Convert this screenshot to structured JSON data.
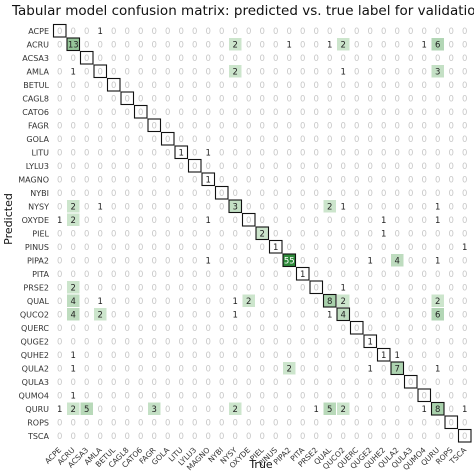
{
  "chart_data": {
    "type": "heatmap",
    "title": "Tabular model confusion matrix: predicted vs. true label for validation set",
    "xlabel": "True",
    "ylabel": "Predicted",
    "labels": [
      "ACPE",
      "ACRU",
      "ACSA3",
      "AMLA",
      "BETUL",
      "CAGL8",
      "CATO6",
      "FAGR",
      "GOLA",
      "LITU",
      "LYLU3",
      "MAGNO",
      "NYBI",
      "NYSY",
      "OXYDE",
      "PIEL",
      "PINUS",
      "PIPA2",
      "PITA",
      "PRSE2",
      "QUAL",
      "QUCO2",
      "QUERC",
      "QUGE2",
      "QUHE2",
      "QULA2",
      "QULA3",
      "QUMO4",
      "QURU",
      "ROPS",
      "TSCA"
    ],
    "matrix": [
      [
        0,
        0,
        0,
        1,
        0,
        0,
        0,
        0,
        0,
        0,
        0,
        0,
        0,
        0,
        0,
        0,
        0,
        0,
        0,
        0,
        0,
        0,
        0,
        0,
        0,
        0,
        0,
        0,
        0,
        0,
        0
      ],
      [
        0,
        13,
        0,
        0,
        0,
        0,
        0,
        0,
        0,
        0,
        0,
        0,
        0,
        2,
        0,
        0,
        0,
        1,
        0,
        0,
        1,
        2,
        0,
        0,
        0,
        0,
        0,
        1,
        6,
        0,
        0
      ],
      [
        0,
        0,
        0,
        0,
        0,
        0,
        0,
        0,
        0,
        0,
        0,
        0,
        0,
        0,
        0,
        0,
        0,
        0,
        0,
        0,
        0,
        0,
        0,
        0,
        0,
        0,
        0,
        0,
        0,
        0,
        0
      ],
      [
        0,
        1,
        0,
        0,
        0,
        0,
        0,
        0,
        0,
        0,
        0,
        0,
        0,
        2,
        0,
        0,
        0,
        0,
        0,
        0,
        0,
        1,
        0,
        0,
        0,
        0,
        0,
        0,
        3,
        0,
        0
      ],
      [
        0,
        0,
        0,
        0,
        0,
        0,
        0,
        0,
        0,
        0,
        0,
        0,
        0,
        0,
        0,
        0,
        0,
        0,
        0,
        0,
        0,
        0,
        0,
        0,
        0,
        0,
        0,
        0,
        0,
        0,
        0
      ],
      [
        0,
        0,
        0,
        0,
        0,
        0,
        0,
        0,
        0,
        0,
        0,
        0,
        0,
        0,
        0,
        0,
        0,
        0,
        0,
        0,
        0,
        0,
        0,
        0,
        0,
        0,
        0,
        0,
        0,
        0,
        0
      ],
      [
        0,
        0,
        0,
        0,
        0,
        0,
        0,
        0,
        0,
        0,
        0,
        0,
        0,
        0,
        0,
        0,
        0,
        0,
        0,
        0,
        0,
        0,
        0,
        0,
        0,
        0,
        0,
        0,
        0,
        0,
        0
      ],
      [
        0,
        0,
        0,
        0,
        0,
        0,
        0,
        0,
        0,
        0,
        0,
        0,
        0,
        0,
        0,
        0,
        0,
        0,
        0,
        0,
        0,
        0,
        0,
        0,
        0,
        0,
        0,
        0,
        0,
        0,
        0
      ],
      [
        0,
        0,
        0,
        0,
        0,
        0,
        0,
        0,
        0,
        0,
        0,
        0,
        0,
        0,
        0,
        0,
        0,
        0,
        0,
        0,
        0,
        0,
        0,
        0,
        0,
        0,
        0,
        0,
        0,
        0,
        0
      ],
      [
        0,
        0,
        0,
        0,
        0,
        0,
        0,
        0,
        0,
        1,
        0,
        1,
        0,
        0,
        0,
        0,
        0,
        0,
        0,
        0,
        0,
        0,
        0,
        0,
        0,
        0,
        0,
        0,
        0,
        0,
        0
      ],
      [
        0,
        0,
        0,
        0,
        0,
        0,
        0,
        0,
        0,
        0,
        0,
        0,
        0,
        0,
        0,
        0,
        0,
        0,
        0,
        0,
        0,
        0,
        0,
        0,
        0,
        0,
        0,
        0,
        0,
        0,
        0
      ],
      [
        0,
        0,
        0,
        0,
        0,
        0,
        0,
        0,
        0,
        0,
        0,
        1,
        0,
        0,
        0,
        0,
        0,
        0,
        0,
        0,
        0,
        0,
        0,
        0,
        0,
        0,
        0,
        0,
        0,
        0,
        0
      ],
      [
        0,
        0,
        0,
        0,
        0,
        0,
        0,
        0,
        0,
        0,
        0,
        0,
        0,
        0,
        0,
        0,
        0,
        0,
        0,
        0,
        0,
        0,
        0,
        0,
        0,
        0,
        0,
        0,
        0,
        0,
        0
      ],
      [
        0,
        2,
        0,
        1,
        0,
        0,
        0,
        0,
        0,
        0,
        0,
        0,
        0,
        3,
        0,
        0,
        0,
        0,
        0,
        0,
        2,
        1,
        0,
        0,
        0,
        0,
        0,
        0,
        1,
        0,
        0
      ],
      [
        1,
        2,
        0,
        0,
        0,
        0,
        0,
        0,
        0,
        0,
        0,
        1,
        0,
        0,
        0,
        0,
        0,
        0,
        0,
        0,
        0,
        0,
        0,
        0,
        1,
        0,
        0,
        0,
        1,
        0,
        0
      ],
      [
        0,
        0,
        0,
        0,
        0,
        0,
        0,
        0,
        0,
        0,
        0,
        0,
        0,
        0,
        0,
        2,
        0,
        0,
        0,
        0,
        0,
        0,
        0,
        0,
        1,
        0,
        0,
        0,
        0,
        0,
        0
      ],
      [
        0,
        0,
        0,
        0,
        0,
        0,
        0,
        0,
        0,
        0,
        0,
        0,
        0,
        0,
        0,
        0,
        1,
        0,
        0,
        0,
        0,
        0,
        0,
        0,
        0,
        0,
        0,
        0,
        0,
        0,
        1
      ],
      [
        0,
        0,
        0,
        0,
        0,
        0,
        0,
        0,
        0,
        0,
        0,
        1,
        0,
        0,
        0,
        0,
        0,
        55,
        0,
        0,
        0,
        0,
        0,
        1,
        0,
        4,
        0,
        0,
        1,
        0,
        0
      ],
      [
        0,
        0,
        0,
        0,
        0,
        0,
        0,
        0,
        0,
        0,
        0,
        0,
        0,
        0,
        0,
        0,
        0,
        0,
        1,
        0,
        0,
        0,
        0,
        0,
        0,
        0,
        0,
        0,
        0,
        0,
        0
      ],
      [
        0,
        2,
        0,
        0,
        0,
        0,
        0,
        0,
        0,
        0,
        0,
        0,
        0,
        0,
        0,
        0,
        0,
        0,
        0,
        0,
        0,
        1,
        0,
        0,
        0,
        0,
        0,
        0,
        0,
        0,
        0
      ],
      [
        0,
        4,
        0,
        1,
        0,
        0,
        0,
        0,
        0,
        0,
        0,
        0,
        0,
        1,
        2,
        0,
        0,
        0,
        0,
        0,
        8,
        2,
        0,
        0,
        0,
        0,
        0,
        0,
        2,
        0,
        0
      ],
      [
        0,
        4,
        0,
        2,
        0,
        0,
        0,
        0,
        0,
        0,
        0,
        0,
        0,
        1,
        0,
        0,
        0,
        0,
        0,
        0,
        1,
        4,
        0,
        0,
        0,
        0,
        0,
        0,
        6,
        0,
        0
      ],
      [
        0,
        0,
        0,
        0,
        0,
        0,
        0,
        0,
        0,
        0,
        0,
        0,
        0,
        0,
        0,
        0,
        0,
        0,
        0,
        0,
        0,
        0,
        0,
        0,
        0,
        0,
        0,
        0,
        0,
        0,
        0
      ],
      [
        0,
        0,
        0,
        0,
        0,
        0,
        0,
        0,
        0,
        0,
        0,
        0,
        0,
        0,
        0,
        0,
        0,
        0,
        0,
        0,
        0,
        0,
        0,
        1,
        0,
        0,
        0,
        0,
        0,
        0,
        0
      ],
      [
        0,
        1,
        0,
        0,
        0,
        0,
        0,
        0,
        0,
        0,
        0,
        0,
        0,
        0,
        0,
        0,
        0,
        0,
        0,
        0,
        0,
        0,
        0,
        0,
        1,
        1,
        0,
        0,
        0,
        0,
        0
      ],
      [
        0,
        1,
        0,
        0,
        0,
        0,
        0,
        0,
        0,
        0,
        0,
        0,
        0,
        0,
        0,
        0,
        0,
        2,
        0,
        0,
        0,
        0,
        0,
        1,
        0,
        7,
        0,
        0,
        1,
        0,
        0
      ],
      [
        0,
        0,
        0,
        0,
        0,
        0,
        0,
        0,
        0,
        0,
        0,
        0,
        0,
        0,
        0,
        0,
        0,
        0,
        0,
        0,
        0,
        0,
        0,
        0,
        0,
        0,
        0,
        0,
        0,
        0,
        0
      ],
      [
        0,
        1,
        0,
        0,
        0,
        0,
        0,
        0,
        0,
        0,
        0,
        0,
        0,
        0,
        0,
        0,
        0,
        0,
        0,
        0,
        0,
        0,
        0,
        0,
        0,
        0,
        0,
        0,
        0,
        0,
        0
      ],
      [
        1,
        2,
        5,
        0,
        0,
        0,
        0,
        3,
        0,
        0,
        0,
        0,
        0,
        2,
        0,
        0,
        0,
        0,
        0,
        1,
        5,
        2,
        0,
        0,
        0,
        0,
        0,
        1,
        8,
        0,
        1
      ],
      [
        0,
        0,
        0,
        0,
        0,
        0,
        0,
        0,
        0,
        0,
        0,
        0,
        0,
        0,
        0,
        0,
        0,
        0,
        0,
        0,
        0,
        0,
        0,
        0,
        0,
        0,
        0,
        0,
        0,
        0,
        0
      ],
      [
        0,
        0,
        0,
        0,
        0,
        0,
        0,
        0,
        0,
        0,
        0,
        0,
        0,
        0,
        0,
        0,
        0,
        0,
        0,
        0,
        0,
        0,
        0,
        0,
        0,
        0,
        0,
        0,
        0,
        0,
        0
      ]
    ],
    "diagonal_outline": true,
    "colors": {
      "zero_text": "#c8c8c8",
      "count_text": "#222222",
      "low_fill": "#eaf6e8",
      "high_fill": "#2e8a3a",
      "diag_stroke": "#111111"
    },
    "grid": false
  }
}
